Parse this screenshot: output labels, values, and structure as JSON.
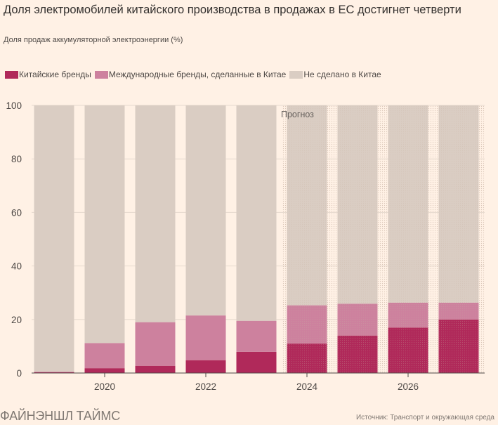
{
  "header": {
    "title": "Доля электромобилей китайского производства в продажах в ЕС достигнет четверти",
    "subtitle": "Доля продаж аккумуляторной электроэнергии (%)"
  },
  "footer": {
    "brand": "ФАЙНЭНШЛ ТАЙМС",
    "source": "Источник: Транспорт и окружающая среда"
  },
  "chart_data": {
    "type": "bar",
    "stacked": true,
    "categories": [
      "2019",
      "2020",
      "2021",
      "2022",
      "2023",
      "2024",
      "2025",
      "2026",
      "2027"
    ],
    "x_tick_labels": [
      "2020",
      "2022",
      "2024",
      "2026"
    ],
    "series": [
      {
        "name": "Китайские бренды",
        "color": "#b0295a",
        "values": [
          0.3,
          1.8,
          2.7,
          4.8,
          7.9,
          11.0,
          14.0,
          17.0,
          20.0
        ]
      },
      {
        "name": "Международные бренды, сделанные в Китае",
        "color": "#cd819e",
        "values": [
          0.2,
          9.4,
          16.3,
          16.7,
          11.6,
          14.3,
          11.9,
          9.3,
          6.3
        ]
      },
      {
        "name": "Не сделано в Китае",
        "color": "#dacdc3",
        "values": [
          99.5,
          88.8,
          81.0,
          78.5,
          80.5,
          74.7,
          74.1,
          73.7,
          73.7
        ]
      }
    ],
    "ylim": [
      0,
      100
    ],
    "y_ticks": [
      0,
      20,
      40,
      60,
      80,
      100
    ],
    "forecast_label": "Прогноз",
    "forecast_start_index": 5,
    "grid": true,
    "legend_position": "top-left"
  }
}
